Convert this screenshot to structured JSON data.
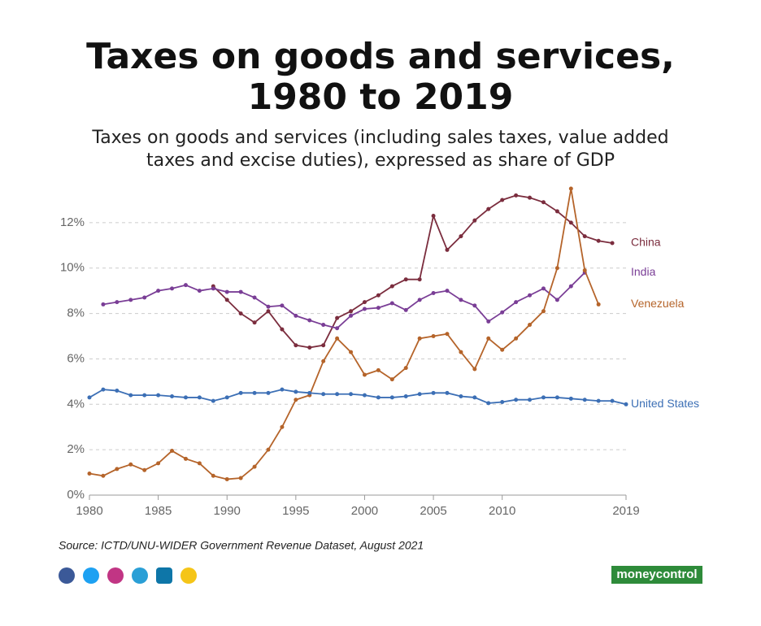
{
  "chart_data": {
    "type": "line",
    "title": "Taxes on goods and services,",
    "title_line2": "1980 to 2019",
    "subtitle": "Taxes on goods and services (including sales taxes, value added",
    "subtitle_line2": "taxes and excise duties), expressed as share of GDP",
    "source": "Source: ICTD/UNU-WIDER Government Revenue Dataset, August 2021",
    "brand": "moneycontrol",
    "x": [
      1980,
      1981,
      1982,
      1983,
      1984,
      1985,
      1986,
      1987,
      1988,
      1989,
      1990,
      1991,
      1992,
      1993,
      1994,
      1995,
      1996,
      1997,
      1998,
      1999,
      2000,
      2001,
      2002,
      2003,
      2004,
      2005,
      2006,
      2007,
      2008,
      2009,
      2010,
      2011,
      2012,
      2013,
      2014,
      2015,
      2016,
      2017,
      2018,
      2019
    ],
    "xlim": [
      1980,
      2019
    ],
    "xticks": [
      1980,
      1985,
      1990,
      1995,
      2000,
      2005,
      2010,
      2019
    ],
    "ylim": [
      0,
      13.5
    ],
    "yticks": [
      {
        "value": 0,
        "label": "0%"
      },
      {
        "value": 2,
        "label": "2%"
      },
      {
        "value": 4,
        "label": "4%"
      },
      {
        "value": 6,
        "label": "6%"
      },
      {
        "value": 8,
        "label": "8%"
      },
      {
        "value": 10,
        "label": "10%"
      },
      {
        "value": 12,
        "label": "12%"
      }
    ],
    "grid": true,
    "series": [
      {
        "name": "China",
        "color": "#7b2d3e",
        "values": [
          null,
          null,
          null,
          null,
          null,
          null,
          null,
          null,
          null,
          9.2,
          8.6,
          8.0,
          7.6,
          8.1,
          7.3,
          6.6,
          6.5,
          6.6,
          7.8,
          8.1,
          8.5,
          8.8,
          9.2,
          9.5,
          9.5,
          12.3,
          10.8,
          11.4,
          12.1,
          12.6,
          13.0,
          13.2,
          13.1,
          12.9,
          12.5,
          12.0,
          11.4,
          11.2,
          11.1,
          null
        ]
      },
      {
        "name": "India",
        "color": "#7a3e96",
        "values": [
          null,
          8.4,
          8.5,
          8.6,
          8.7,
          9.0,
          9.1,
          9.25,
          9.0,
          9.1,
          8.95,
          8.95,
          8.7,
          8.3,
          8.35,
          7.9,
          7.7,
          7.5,
          7.35,
          7.9,
          8.2,
          8.25,
          8.45,
          8.15,
          8.6,
          8.9,
          9.0,
          8.6,
          8.35,
          7.65,
          8.05,
          8.5,
          8.8,
          9.1,
          8.6,
          9.2,
          9.8,
          null,
          null,
          null
        ]
      },
      {
        "name": "Venezuela",
        "color": "#b5642a",
        "values": [
          0.95,
          0.85,
          1.15,
          1.35,
          1.1,
          1.4,
          1.95,
          1.6,
          1.4,
          0.85,
          0.7,
          0.75,
          1.25,
          2.0,
          3.0,
          4.2,
          4.4,
          5.9,
          6.9,
          6.3,
          5.3,
          5.5,
          5.1,
          5.6,
          6.9,
          7.0,
          7.1,
          6.3,
          5.55,
          6.9,
          6.4,
          6.9,
          7.5,
          8.1,
          10.0,
          13.5,
          9.9,
          8.4,
          null,
          null
        ]
      },
      {
        "name": "United States",
        "color": "#3c6fb5",
        "values": [
          4.3,
          4.65,
          4.6,
          4.4,
          4.4,
          4.4,
          4.35,
          4.3,
          4.3,
          4.15,
          4.3,
          4.5,
          4.5,
          4.5,
          4.65,
          4.55,
          4.5,
          4.45,
          4.45,
          4.45,
          4.4,
          4.3,
          4.3,
          4.35,
          4.45,
          4.5,
          4.5,
          4.35,
          4.3,
          4.05,
          4.1,
          4.2,
          4.2,
          4.3,
          4.3,
          4.25,
          4.2,
          4.15,
          4.15,
          4.0
        ]
      }
    ]
  }
}
